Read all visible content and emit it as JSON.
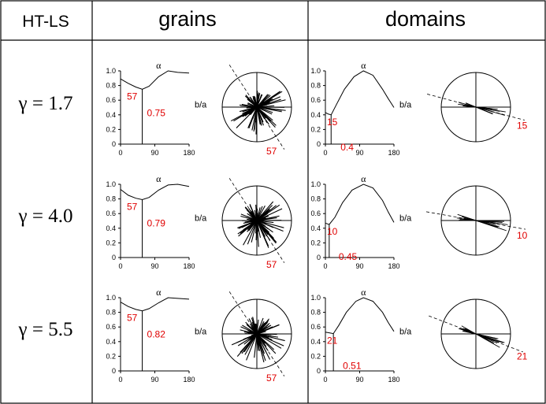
{
  "header": {
    "corner_label": "HT-LS",
    "col_grains": "grains",
    "col_domains": "domains"
  },
  "rows": [
    {
      "gamma_label": "γ = 1.7",
      "grains": {
        "alpha_min": 57,
        "ba_min": "0.75",
        "rose_label": "57",
        "alpha_label": "α",
        "ba_label": "b/a"
      },
      "domains": {
        "alpha_min": 15,
        "ba_min": "0.4",
        "rose_label": "15",
        "alpha_label": "α",
        "ba_label": "b/a"
      }
    },
    {
      "gamma_label": "γ = 4.0",
      "grains": {
        "alpha_min": 57,
        "ba_min": "0.79",
        "rose_label": "57",
        "alpha_label": "α",
        "ba_label": "b/a"
      },
      "domains": {
        "alpha_min": 10,
        "ba_min": "0.45",
        "rose_label": "10",
        "alpha_label": "α",
        "ba_label": "b/a"
      }
    },
    {
      "gamma_label": "γ = 5.5",
      "grains": {
        "alpha_min": 57,
        "ba_min": "0.82",
        "rose_label": "57",
        "alpha_label": "α",
        "ba_label": "b/a"
      },
      "domains": {
        "alpha_min": 21,
        "ba_min": "0.51",
        "rose_label": "21",
        "alpha_label": "α",
        "ba_label": "b/a"
      }
    }
  ],
  "axis": {
    "x_ticks": [
      "0",
      "90",
      "180"
    ],
    "y_ticks": [
      "0",
      "0.2",
      "0.4",
      "0.6",
      "0.8",
      "1.0"
    ]
  },
  "colors": {
    "annotation": "#e00000",
    "ink": "#000000",
    "background": "#ffffff"
  },
  "chart_data": [
    {
      "panel": "grains γ=1.7",
      "type": "line",
      "x": [
        0,
        20,
        40,
        57,
        75,
        100,
        125,
        150,
        180
      ],
      "y": [
        0.89,
        0.83,
        0.78,
        0.75,
        0.79,
        0.92,
        1.0,
        0.98,
        0.97
      ],
      "xlim": [
        0,
        180
      ],
      "ylim": [
        0,
        1
      ]
    },
    {
      "panel": "domains γ=1.7",
      "type": "line",
      "x": [
        0,
        8,
        15,
        30,
        50,
        75,
        100,
        125,
        150,
        165,
        180
      ],
      "y": [
        0.43,
        0.41,
        0.4,
        0.55,
        0.75,
        0.92,
        1.0,
        0.94,
        0.75,
        0.62,
        0.5
      ],
      "xlim": [
        0,
        180
      ],
      "ylim": [
        0,
        1
      ]
    },
    {
      "panel": "grains γ=4.0",
      "type": "line",
      "x": [
        0,
        20,
        40,
        57,
        75,
        100,
        125,
        150,
        180
      ],
      "y": [
        0.93,
        0.85,
        0.81,
        0.79,
        0.82,
        0.92,
        0.99,
        1.0,
        0.97
      ],
      "xlim": [
        0,
        180
      ],
      "ylim": [
        0,
        1
      ]
    },
    {
      "panel": "domains γ=4.0",
      "type": "line",
      "x": [
        0,
        5,
        10,
        25,
        45,
        70,
        100,
        125,
        150,
        165,
        180
      ],
      "y": [
        0.47,
        0.46,
        0.45,
        0.55,
        0.75,
        0.92,
        1.0,
        0.95,
        0.78,
        0.62,
        0.48
      ],
      "xlim": [
        0,
        180
      ],
      "ylim": [
        0,
        1
      ]
    },
    {
      "panel": "grains γ=5.5",
      "type": "line",
      "x": [
        0,
        20,
        40,
        57,
        75,
        100,
        125,
        150,
        180
      ],
      "y": [
        0.94,
        0.88,
        0.84,
        0.82,
        0.85,
        0.93,
        1.0,
        0.99,
        0.98
      ],
      "xlim": [
        0,
        180
      ],
      "ylim": [
        0,
        1
      ]
    },
    {
      "panel": "domains γ=5.5",
      "type": "line",
      "x": [
        0,
        10,
        21,
        35,
        55,
        80,
        100,
        125,
        150,
        165,
        180
      ],
      "y": [
        0.53,
        0.52,
        0.51,
        0.62,
        0.8,
        0.95,
        1.0,
        0.95,
        0.8,
        0.66,
        0.54
      ],
      "xlim": [
        0,
        180
      ],
      "ylim": [
        0,
        1
      ]
    }
  ]
}
